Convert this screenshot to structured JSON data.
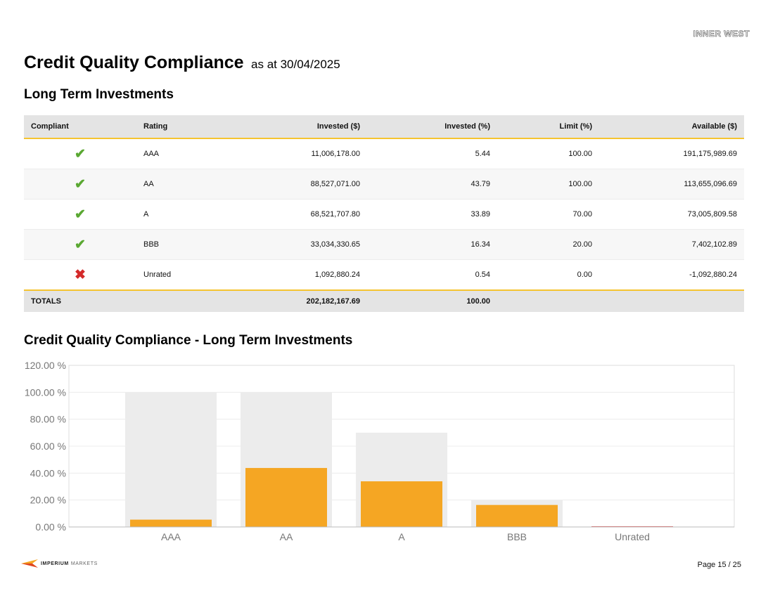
{
  "header": {
    "logo_text": "INNER WEST"
  },
  "title": {
    "main": "Credit Quality Compliance",
    "sub": "as at 30/04/2025"
  },
  "section1": {
    "heading": "Long Term Investments"
  },
  "table": {
    "headers": {
      "compliant": "Compliant",
      "rating": "Rating",
      "invested_amt": "Invested ($)",
      "invested_pct": "Invested (%)",
      "limit_pct": "Limit (%)",
      "available": "Available ($)"
    },
    "rows": [
      {
        "compliant": true,
        "icon": "check-icon",
        "rating": "AAA",
        "invested_amt": "11,006,178.00",
        "invested_pct": "5.44",
        "limit_pct": "100.00",
        "available": "191,175,989.69"
      },
      {
        "compliant": true,
        "icon": "check-icon",
        "rating": "AA",
        "invested_amt": "88,527,071.00",
        "invested_pct": "43.79",
        "limit_pct": "100.00",
        "available": "113,655,096.69"
      },
      {
        "compliant": true,
        "icon": "check-icon",
        "rating": "A",
        "invested_amt": "68,521,707.80",
        "invested_pct": "33.89",
        "limit_pct": "70.00",
        "available": "73,005,809.58"
      },
      {
        "compliant": true,
        "icon": "check-icon",
        "rating": "BBB",
        "invested_amt": "33,034,330.65",
        "invested_pct": "16.34",
        "limit_pct": "20.00",
        "available": "7,402,102.89"
      },
      {
        "compliant": false,
        "icon": "cross-icon",
        "rating": "Unrated",
        "invested_amt": "1,092,880.24",
        "invested_pct": "0.54",
        "limit_pct": "0.00",
        "available": "-1,092,880.24"
      }
    ],
    "totals": {
      "label": "TOTALS",
      "invested_amt": "202,182,167.69",
      "invested_pct": "100.00"
    }
  },
  "section2": {
    "heading": "Credit Quality Compliance - Long Term Investments"
  },
  "chart_data": {
    "type": "bar",
    "categories": [
      "AAA",
      "AA",
      "A",
      "BBB",
      "Unrated"
    ],
    "series": [
      {
        "values": [
          100,
          100,
          70,
          20,
          0
        ],
        "color": "#ececec"
      },
      {
        "values": [
          5.44,
          43.79,
          33.89,
          16.34,
          0.54
        ],
        "color": "#f5a623"
      }
    ],
    "noncompliant_color": "#e05656",
    "y_ticks": [
      "0.00 %",
      "20.00 %",
      "40.00 %",
      "60.00 %",
      "80.00 %",
      "100.00 %",
      "120.00 %"
    ],
    "ylim": [
      0,
      120
    ],
    "grid": true,
    "title": "",
    "xlabel": "",
    "ylabel": ""
  },
  "footer": {
    "brand_bold": "IMPERIUM",
    "brand_light": "MARKETS",
    "page": "Page 15 / 25"
  },
  "colors": {
    "accent": "#f5c430",
    "bar": "#f5a623",
    "ok": "#5aa832",
    "bad": "#d42a2a"
  }
}
